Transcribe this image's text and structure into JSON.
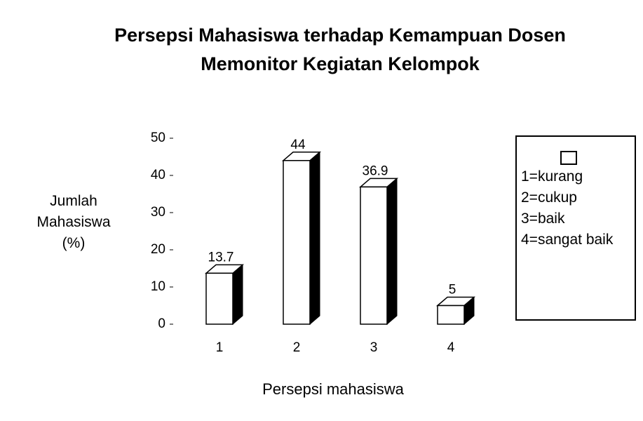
{
  "chart_data": {
    "type": "bar3d",
    "title": "Persepsi Mahasiswa terhadap Kemampuan Dosen Memonitor Kegiatan Kelompok",
    "y_label": "Jumlah Mahasiswa (%)",
    "x_label": "Persepsi mahasiswa",
    "categories": [
      "1",
      "2",
      "3",
      "4"
    ],
    "values": [
      13.7,
      44,
      36.9,
      5
    ],
    "color": "#ffffff",
    "side_color": "#000000",
    "ylim": [
      0,
      50
    ],
    "yticks": [
      0,
      10,
      20,
      30,
      40,
      50
    ],
    "legend": [
      "1=kurang",
      "2=cukup",
      "3=baik",
      "4=sangat baik"
    ]
  }
}
